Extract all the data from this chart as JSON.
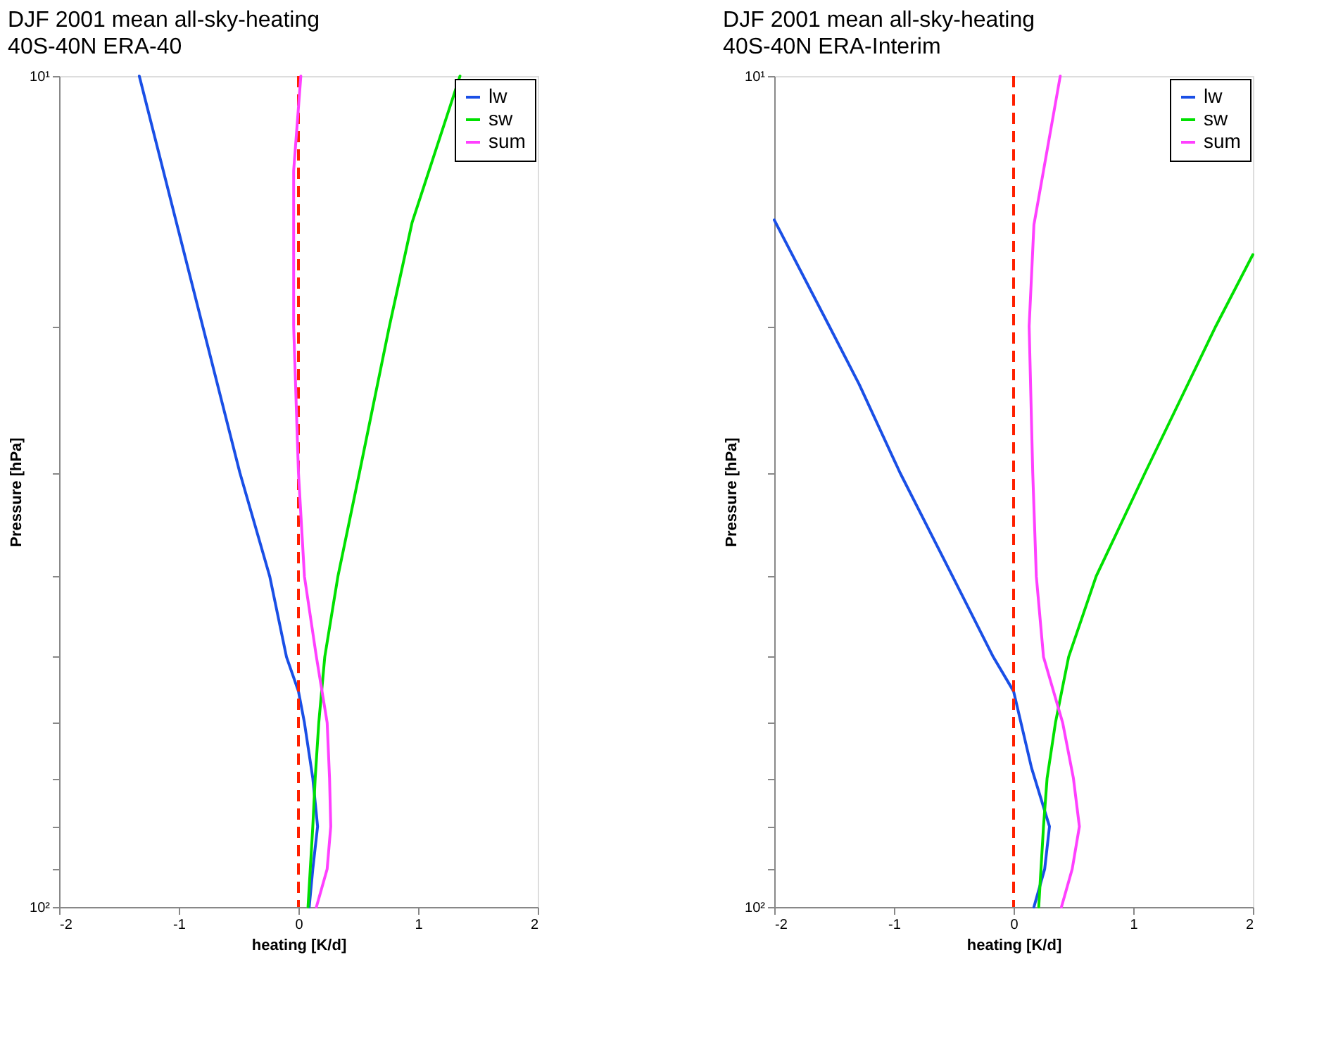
{
  "chart_data": [
    {
      "type": "line",
      "title": "DJF 2001 mean all-sky-heating",
      "subtitle": "40S-40N ERA-40",
      "xlabel": "heating [K/d]",
      "ylabel": "Pressure [hPa]",
      "xlim": [
        -2,
        2
      ],
      "xticks": [
        -2,
        -1,
        0,
        1,
        2
      ],
      "ylim": [
        100,
        10
      ],
      "log": "y",
      "yticks": [
        {
          "value": 10,
          "label": "10¹"
        },
        {
          "value": 20,
          "label": null
        },
        {
          "value": 30,
          "label": null
        },
        {
          "value": 40,
          "label": null
        },
        {
          "value": 50,
          "label": null
        },
        {
          "value": 60,
          "label": null
        },
        {
          "value": 70,
          "label": null
        },
        {
          "value": 80,
          "label": null
        },
        {
          "value": 90,
          "label": null
        },
        {
          "value": 100,
          "label": "10²"
        }
      ],
      "grid": false,
      "legend": "top right",
      "marker": "none",
      "line_style": "solid",
      "series": [
        {
          "name": "lw",
          "color": "#1a4fe6",
          "x": [
            -1.33,
            -0.8,
            -0.49,
            -0.24,
            -0.1,
            0,
            0.05,
            0.12,
            0.16,
            0.12,
            0.09
          ],
          "values": [
            10,
            20,
            30,
            40,
            50,
            55,
            60,
            70,
            80,
            90,
            100
          ]
        },
        {
          "name": "sw",
          "color": "#00e000",
          "x": [
            1.35,
            0.95,
            0.76,
            0.51,
            0.33,
            0.22,
            0.17,
            0.14,
            0.12,
            0.08
          ],
          "values": [
            10,
            15,
            20,
            30,
            40,
            50,
            60,
            70,
            80,
            100
          ]
        },
        {
          "name": "sum",
          "color": "#ff40ff",
          "x": [
            0.02,
            -0.04,
            -0.04,
            0,
            0.05,
            0.15,
            0.24,
            0.26,
            0.27,
            0.24,
            0.15
          ],
          "values": [
            10,
            13,
            20,
            30,
            40,
            50,
            60,
            70,
            80,
            90,
            100
          ]
        }
      ],
      "ref_lines": [
        {
          "axis": "x",
          "value": 0,
          "color": "#ff2000",
          "line_style": "dashed"
        }
      ]
    },
    {
      "type": "line",
      "title": "DJF 2001 mean all-sky-heating",
      "subtitle": "40S-40N ERA-Interim",
      "xlabel": "heating [K/d]",
      "ylabel": "Pressure [hPa]",
      "xlim": [
        -2,
        2
      ],
      "xticks": [
        -2,
        -1,
        0,
        1,
        2
      ],
      "ylim": [
        100,
        10
      ],
      "log": "y",
      "yticks": [
        {
          "value": 10,
          "label": "10¹"
        },
        {
          "value": 20,
          "label": null
        },
        {
          "value": 30,
          "label": null
        },
        {
          "value": 40,
          "label": null
        },
        {
          "value": 50,
          "label": null
        },
        {
          "value": 60,
          "label": null
        },
        {
          "value": 70,
          "label": null
        },
        {
          "value": 80,
          "label": null
        },
        {
          "value": 90,
          "label": null
        },
        {
          "value": 100,
          "label": "10²"
        }
      ],
      "grid": false,
      "legend": "top right",
      "marker": "none",
      "line_style": "solid",
      "series": [
        {
          "name": "lw",
          "color": "#1a4fe6",
          "x": [
            -2,
            -1.54,
            -1.29,
            -0.95,
            -0.51,
            -0.17,
            0,
            0.15,
            0.3,
            0.26,
            0.17
          ],
          "values": [
            14.9,
            20,
            23.5,
            30,
            40,
            50,
            55,
            68,
            80,
            90,
            100
          ]
        },
        {
          "name": "sw",
          "color": "#00e000",
          "x": [
            2,
            1.69,
            1.1,
            0.69,
            0.46,
            0.35,
            0.28,
            0.25,
            0.21
          ],
          "values": [
            16.4,
            20,
            30,
            40,
            50,
            60,
            70,
            80,
            100
          ]
        },
        {
          "name": "sum",
          "color": "#ff40ff",
          "x": [
            0.39,
            0.17,
            0.13,
            0.16,
            0.19,
            0.25,
            0.41,
            0.5,
            0.55,
            0.49,
            0.4
          ],
          "values": [
            10,
            15.1,
            20,
            30,
            40,
            50,
            60,
            70,
            80,
            90,
            100
          ]
        }
      ],
      "ref_lines": [
        {
          "axis": "x",
          "value": 0,
          "color": "#ff2000",
          "line_style": "dashed"
        }
      ]
    }
  ]
}
